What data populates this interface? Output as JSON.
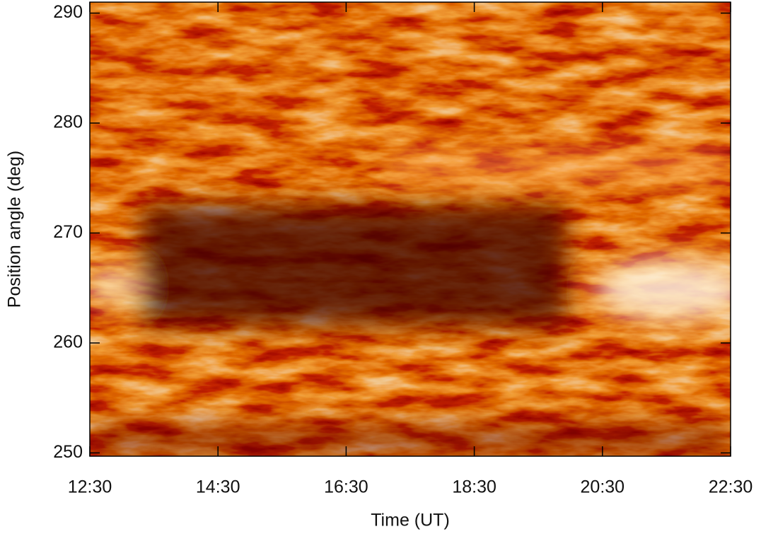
{
  "chart_data": {
    "type": "heatmap",
    "xlabel": "Time (UT)",
    "ylabel": "Position angle (deg)",
    "xlim": [
      12.5,
      22.5
    ],
    "xticks": [
      {
        "value": 12.5,
        "label": "12:30"
      },
      {
        "value": 14.5,
        "label": "14:30"
      },
      {
        "value": 16.5,
        "label": "16:30"
      },
      {
        "value": 18.5,
        "label": "18:30"
      },
      {
        "value": 20.5,
        "label": "20:30"
      },
      {
        "value": 22.5,
        "label": "22:30"
      }
    ],
    "ylim": [
      249.7,
      291
    ],
    "yticks": [
      250,
      260,
      270,
      280,
      290
    ]
  }
}
